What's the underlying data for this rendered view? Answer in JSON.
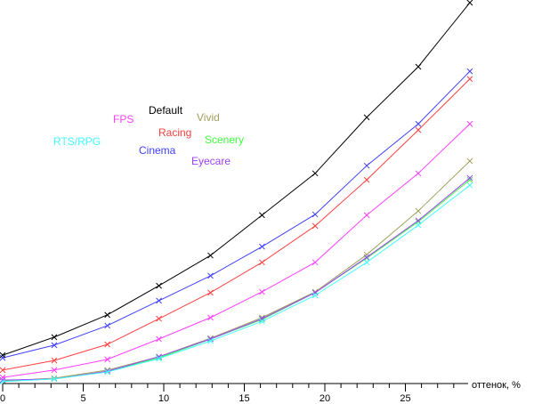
{
  "chart_data": {
    "type": "line",
    "title": "",
    "xlabel": "оттенок, %",
    "ylabel": "",
    "xlim": [
      0,
      29
    ],
    "ylim": [
      0,
      100
    ],
    "x_ticks": [
      0,
      5,
      10,
      15,
      20,
      25
    ],
    "grid": false,
    "legend_placement": "inline, upper-left of plot",
    "x": [
      0,
      3.2,
      6.5,
      9.7,
      12.9,
      16.1,
      19.4,
      22.6,
      25.8,
      29.0
    ],
    "series": [
      {
        "name": "Default",
        "color": "#000000",
        "values": [
          7.4,
          12.1,
          17.9,
          25.5,
          33.4,
          43.9,
          54.8,
          69.4,
          82.6,
          99.3
        ]
      },
      {
        "name": "Cinema",
        "color": "#4040ff",
        "values": [
          6.7,
          10.0,
          15.1,
          21.6,
          28.1,
          35.7,
          44.1,
          56.8,
          67.7,
          81.4
        ]
      },
      {
        "name": "Racing",
        "color": "#ff4040",
        "values": [
          3.5,
          6.0,
          10.2,
          16.9,
          23.7,
          31.6,
          41.1,
          53.1,
          66.1,
          79.4
        ]
      },
      {
        "name": "FPS",
        "color": "#ff40ff",
        "values": [
          1.6,
          3.5,
          6.3,
          11.6,
          17.2,
          23.9,
          31.6,
          43.9,
          54.8,
          67.7
        ]
      },
      {
        "name": "Vivid",
        "color": "#a0a060",
        "values": [
          0.7,
          1.4,
          3.5,
          7.0,
          11.8,
          17.2,
          23.9,
          33.6,
          45.0,
          58.0
        ]
      },
      {
        "name": "Scenery",
        "color": "#40ff40",
        "values": [
          0.7,
          1.2,
          3.2,
          6.7,
          11.6,
          16.7,
          23.7,
          32.7,
          42.2,
          53.1
        ]
      },
      {
        "name": "Eyecare",
        "color": "#a040ff",
        "values": [
          0.9,
          1.2,
          3.2,
          7.0,
          11.6,
          16.9,
          23.7,
          32.9,
          42.5,
          53.6
        ]
      },
      {
        "name": "RTS/RPG",
        "color": "#40ffff",
        "values": [
          0.5,
          1.2,
          3.0,
          6.5,
          11.1,
          16.2,
          23.0,
          31.6,
          41.3,
          51.7
        ]
      }
    ]
  }
}
